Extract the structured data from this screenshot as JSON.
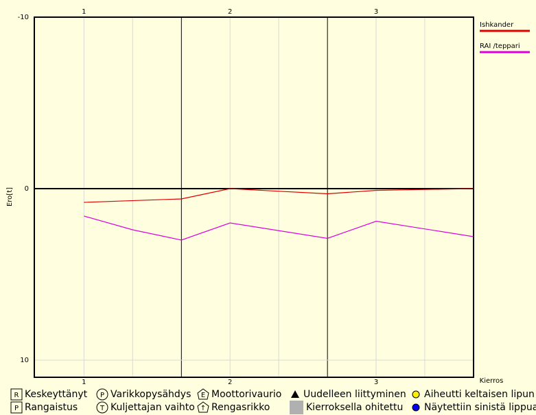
{
  "chart_data": {
    "type": "line",
    "y_label": "Ero[t]",
    "x_label": "Kierros",
    "xlim": [
      0.66,
      3.667
    ],
    "xticks": [
      1,
      2,
      3
    ],
    "xgrid": [
      1,
      1.333,
      2,
      2.333,
      3,
      3.333
    ],
    "xmarkers": [
      1.667,
      2.667
    ],
    "ylim": [
      -10,
      11
    ],
    "yticks": [
      -10,
      0,
      10
    ],
    "y_inverted": true,
    "grid": true,
    "series": [
      {
        "name": "Ishkander",
        "color": "#dd0000",
        "x": [
          1,
          1.667,
          2,
          2.667,
          3,
          3.667
        ],
        "values": [
          0.8,
          0.6,
          0,
          0.3,
          0.1,
          0
        ]
      },
      {
        "name": "RAI /teppari",
        "color": "#dd00dd",
        "x": [
          1,
          1.333,
          1.667,
          2,
          2.667,
          3,
          3.667
        ],
        "values": [
          1.6,
          2.4,
          3.0,
          2.0,
          2.9,
          1.9,
          2.8
        ]
      }
    ],
    "symbol_legend": [
      [
        {
          "shape": "square",
          "symbol": "R",
          "label": "Keskeyttänyt"
        },
        {
          "shape": "circle",
          "symbol": "P",
          "label": "Varikkopysähdys"
        },
        {
          "shape": "house",
          "symbol": "E",
          "label": "Moottorivaurio"
        },
        {
          "shape": "triangle",
          "label": "Uudelleen liittyminen"
        },
        {
          "shape": "dot",
          "color": "#ffee00",
          "label": "Aiheutti keltaisen lipun"
        }
      ],
      [
        {
          "shape": "square",
          "symbol": "P",
          "label": "Rangaistus"
        },
        {
          "shape": "circle",
          "symbol": "T",
          "label": "Kuljettajan vaihto"
        },
        {
          "shape": "house",
          "symbol": "↑",
          "label": "Rengasrikko"
        },
        {
          "shape": "block",
          "label": "Kierroksella ohitettu"
        },
        {
          "shape": "dot",
          "color": "#0000ee",
          "label": "Näytettiin sinistä lippua"
        }
      ]
    ]
  }
}
